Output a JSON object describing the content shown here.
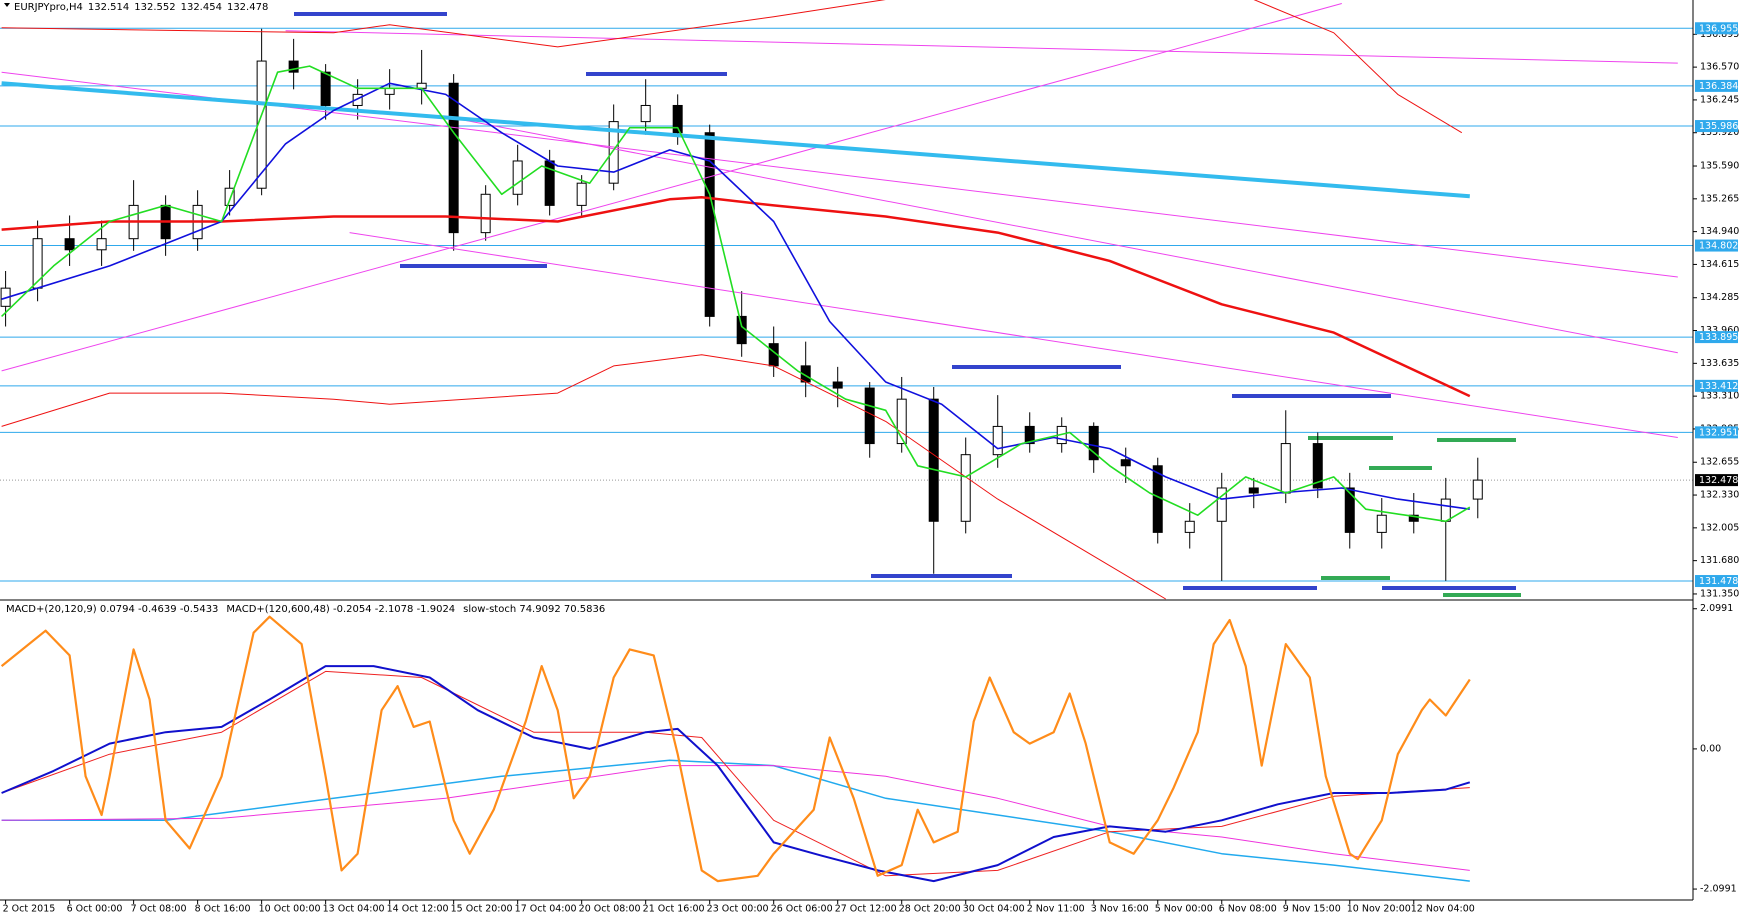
{
  "chart_data": [
    {
      "type": "candlestick",
      "title": "EURJPYpro,H4",
      "title_values": [
        132.514,
        132.552,
        132.454,
        132.478
      ],
      "x": [
        0,
        4,
        8,
        12,
        16,
        20,
        24,
        28,
        32,
        36,
        40,
        44,
        48,
        52,
        56,
        60,
        64,
        68,
        72,
        76,
        80,
        84,
        88,
        92,
        96,
        100,
        104,
        108,
        112,
        116,
        120,
        124,
        128,
        132,
        136,
        140,
        144,
        148,
        152,
        156,
        160,
        164,
        168,
        172,
        176,
        180,
        184
      ],
      "open": [
        134.2,
        134.38,
        134.87,
        134.76,
        134.87,
        135.2,
        134.87,
        135.2,
        135.37,
        136.63,
        136.52,
        136.19,
        136.3,
        136.36,
        136.41,
        134.93,
        135.31,
        135.64,
        135.2,
        135.42,
        136.03,
        136.19,
        135.92,
        134.1,
        133.83,
        133.61,
        133.45,
        133.39,
        132.84,
        133.28,
        132.07,
        132.73,
        133.01,
        132.84,
        133.01,
        132.68,
        132.62,
        131.96,
        132.07,
        132.4,
        132.35,
        132.84,
        132.4,
        131.96,
        132.13,
        132.07,
        132.29
      ],
      "high": [
        134.55,
        135.05,
        135.1,
        135.05,
        135.45,
        135.3,
        135.35,
        135.55,
        136.95,
        136.85,
        136.6,
        136.45,
        136.55,
        136.74,
        136.5,
        135.4,
        135.8,
        135.75,
        135.5,
        136.2,
        136.45,
        136.3,
        136.0,
        134.35,
        134.0,
        133.85,
        133.6,
        133.45,
        133.5,
        133.4,
        132.9,
        133.32,
        133.15,
        133.1,
        133.05,
        132.8,
        132.7,
        132.25,
        132.55,
        132.5,
        133.17,
        132.95,
        132.55,
        132.3,
        132.35,
        132.5,
        132.7
      ],
      "low": [
        134.0,
        134.25,
        134.6,
        134.6,
        134.75,
        134.7,
        134.75,
        135.1,
        135.3,
        136.35,
        136.05,
        136.05,
        136.15,
        136.2,
        134.75,
        134.85,
        135.2,
        135.1,
        135.1,
        135.35,
        135.9,
        135.8,
        134.0,
        133.7,
        133.5,
        133.3,
        133.2,
        132.7,
        132.75,
        131.55,
        131.95,
        132.6,
        132.75,
        132.75,
        132.55,
        132.45,
        131.85,
        131.8,
        131.48,
        132.2,
        132.25,
        132.3,
        131.8,
        131.8,
        131.95,
        131.48,
        132.1
      ],
      "close": [
        134.38,
        134.87,
        134.76,
        134.87,
        135.2,
        134.87,
        135.2,
        135.37,
        136.63,
        136.52,
        136.19,
        136.3,
        136.36,
        136.41,
        134.93,
        135.31,
        135.64,
        135.2,
        135.42,
        136.03,
        136.19,
        135.92,
        134.1,
        133.83,
        133.61,
        133.45,
        133.39,
        132.84,
        133.28,
        132.07,
        132.73,
        133.01,
        132.84,
        133.01,
        132.68,
        132.62,
        131.96,
        132.07,
        132.4,
        132.35,
        132.84,
        132.4,
        131.96,
        132.13,
        132.07,
        132.29,
        132.478
      ],
      "up_color": "#ffffff",
      "down_color": "#000000",
      "edge_color": "#000000",
      "xlim": [
        -0.7,
        210.9
      ],
      "ylim": [
        131.3,
        137.235
      ],
      "yticks": [
        136.895,
        {
          "value": 136.57,
          "label": "136.570"
        },
        136.245,
        {
          "value": 135.92,
          "label": "135.920"
        },
        {
          "value": 135.59,
          "label": "135.590"
        },
        135.265,
        {
          "value": 134.94,
          "label": "134.940"
        },
        134.615,
        134.285,
        {
          "value": 133.96,
          "label": "133.960"
        },
        133.635,
        {
          "value": 133.31,
          "label": "133.310"
        },
        132.985,
        132.655,
        {
          "value": 132.33,
          "label": "132.330"
        },
        132.005,
        {
          "value": 131.68,
          "label": "131.680"
        },
        {
          "value": 131.35,
          "label": "131.350"
        }
      ],
      "levels": [
        {
          "value": 136.955,
          "color": "#2fa9ec",
          "line": "solid"
        },
        {
          "value": 136.384,
          "color": "#2fa9ec",
          "line": "solid"
        },
        {
          "value": 135.986,
          "color": "#2fa9ec",
          "line": "solid"
        },
        {
          "value": 134.802,
          "color": "#2fa9ec",
          "line": "solid"
        },
        {
          "value": 133.895,
          "color": "#2fa9ec",
          "line": "solid"
        },
        {
          "value": 133.412,
          "color": "#2fa9ec",
          "line": "solid"
        },
        {
          "value": 132.951,
          "color": "#2fa9ec",
          "line": "solid"
        },
        {
          "value": 132.478,
          "color": "#000000",
          "line": "dotted"
        },
        {
          "value": 131.478,
          "color": "#2fa9ec",
          "line": "solid"
        }
      ],
      "overlays": [
        {
          "color": "#ee44ee",
          "width": 1,
          "x": [
            35,
            209
          ],
          "values": [
            136.93,
            136.61
          ]
        },
        {
          "color": "#ee44ee",
          "width": 1,
          "x": [
            -0.5,
            209
          ],
          "values": [
            136.52,
            134.49
          ]
        },
        {
          "color": "#ee44ee",
          "width": 1,
          "x": [
            55,
            209
          ],
          "values": [
            136.08,
            133.74
          ]
        },
        {
          "color": "#ee44ee",
          "width": 1,
          "x": [
            43,
            209
          ],
          "values": [
            134.93,
            132.9
          ]
        },
        {
          "color": "#ee44ee",
          "width": 1,
          "x": [
            -0.5,
            167
          ],
          "values": [
            133.56,
            137.2
          ]
        },
        {
          "color": "#33bbee",
          "width": 4,
          "x": [
            -0.5,
            183
          ],
          "values": [
            136.41,
            135.29
          ]
        },
        {
          "color": "#ee1111",
          "width": 1,
          "x": [
            -0.5,
            41,
            48,
            69,
            96,
            110
          ],
          "values": [
            136.96,
            136.91,
            136.99,
            136.77,
            137.07,
            137.24
          ]
        },
        {
          "color": "#ee1111",
          "width": 1,
          "x": [
            156,
            166,
            174,
            182
          ],
          "values": [
            137.24,
            136.91,
            136.3,
            135.92
          ]
        },
        {
          "color": "#ee1111",
          "width": 1,
          "x": [
            -0.5,
            13,
            27,
            41,
            48,
            69,
            76,
            87,
            96,
            110,
            124,
            145
          ],
          "values": [
            133.01,
            133.34,
            133.34,
            133.28,
            133.23,
            133.34,
            133.61,
            133.72,
            133.61,
            133.06,
            132.29,
            131.3
          ]
        },
        {
          "color": "#ee1111",
          "width": 2.5,
          "x": [
            -0.5,
            13,
            27,
            41,
            55,
            69,
            83,
            87,
            96,
            110,
            124,
            138,
            152,
            166,
            183
          ],
          "values": [
            134.96,
            135.04,
            135.04,
            135.09,
            135.09,
            135.04,
            135.26,
            135.28,
            135.2,
            135.09,
            134.93,
            134.65,
            134.22,
            133.94,
            133.31
          ]
        },
        {
          "color": "#1010dd",
          "width": 1.6,
          "x": [
            -0.5,
            13,
            27,
            35,
            41,
            48,
            55,
            62,
            69,
            76,
            83,
            88,
            96,
            103,
            110,
            117,
            124,
            131,
            138,
            145,
            152,
            159,
            167,
            174,
            183
          ],
          "values": [
            134.27,
            134.6,
            135.04,
            135.81,
            136.14,
            136.41,
            136.3,
            135.92,
            135.59,
            135.53,
            135.75,
            135.64,
            135.04,
            134.05,
            133.45,
            133.23,
            132.79,
            132.9,
            132.79,
            132.51,
            132.29,
            132.35,
            132.4,
            132.29,
            132.19
          ]
        },
        {
          "color": "#22dd22",
          "width": 1.6,
          "x": [
            -0.5,
            6,
            13,
            20,
            27,
            34,
            38,
            44,
            52,
            56,
            62,
            67,
            73,
            78,
            84,
            88,
            92,
            99,
            105,
            110,
            114,
            120,
            127,
            133,
            138,
            143,
            149,
            155,
            160,
            166,
            170,
            175,
            180,
            183
          ],
          "values": [
            134.1,
            134.6,
            135.04,
            135.2,
            135.04,
            136.52,
            136.58,
            136.36,
            136.36,
            135.92,
            135.31,
            135.59,
            135.42,
            135.97,
            135.97,
            135.31,
            134.0,
            133.56,
            133.28,
            133.17,
            132.62,
            132.51,
            132.84,
            132.95,
            132.62,
            132.35,
            132.13,
            132.51,
            132.35,
            132.51,
            132.19,
            132.13,
            132.07,
            132.21
          ]
        }
      ]
    },
    {
      "type": "line",
      "legend_texts": [
        "MACD+(20,120,9) 0.0794 -0.4639 -0.5433",
        "MACD+(120,600,48) -0.2054 -2.1078 -1.9024",
        "slow-stoch 74.9092 70.5836"
      ],
      "xlim": [
        -0.7,
        210.9
      ],
      "ylim": [
        -2.248,
        2.215
      ],
      "yticks": [
        2.0991,
        {
          "value": 0,
          "label": "0.00"
        },
        -2.0991
      ],
      "xticks": [
        {
          "value": 0,
          "label": "2 Oct 2015"
        },
        {
          "value": 8,
          "label": "6 Oct 00:00"
        },
        {
          "value": 16,
          "label": "7 Oct 08:00"
        },
        {
          "value": 24,
          "label": "8 Oct 16:00"
        },
        {
          "value": 32,
          "label": "10 Oct 00:00"
        },
        {
          "value": 40,
          "label": "13 Oct 04:00"
        },
        {
          "value": 48,
          "label": "14 Oct 12:00"
        },
        {
          "value": 56,
          "label": "15 Oct 20:00"
        },
        {
          "value": 64,
          "label": "17 Oct 04:00"
        },
        {
          "value": 72,
          "label": "20 Oct 08:00"
        },
        {
          "value": 80,
          "label": "21 Oct 16:00"
        },
        {
          "value": 88,
          "label": "23 Oct 00:00"
        },
        {
          "value": 96,
          "label": "26 Oct 06:00"
        },
        {
          "value": 104,
          "label": "27 Oct 12:00"
        },
        {
          "value": 112,
          "label": "28 Oct 20:00"
        },
        {
          "value": 120,
          "label": "30 Oct 04:00"
        },
        {
          "value": 128,
          "label": "2 Nov 11:00"
        },
        {
          "value": 136,
          "label": "3 Nov 16:00"
        },
        {
          "value": 144,
          "label": "5 Nov 00:00"
        },
        {
          "value": 152,
          "label": "6 Nov 08:00"
        },
        {
          "value": 160,
          "label": "9 Nov 15:00"
        },
        {
          "value": 168,
          "label": "10 Nov 20:00"
        },
        {
          "value": 176,
          "label": "12 Nov 04:00"
        }
      ],
      "series": [
        {
          "color": "#22aaee",
          "width": 1.5,
          "x": [
            -0.5,
            20,
            41,
            62,
            83,
            96,
            110,
            124,
            138,
            152,
            166,
            183
          ],
          "values": [
            -1.07,
            -1.07,
            -0.74,
            -0.41,
            -0.17,
            -0.25,
            -0.74,
            -0.99,
            -1.24,
            -1.57,
            -1.74,
            -1.98
          ]
        },
        {
          "color": "#ee33dd",
          "width": 1,
          "x": [
            -0.5,
            27,
            55,
            83,
            96,
            110,
            124,
            138,
            152,
            166,
            183
          ],
          "values": [
            -1.07,
            -1.04,
            -0.74,
            -0.25,
            -0.25,
            -0.41,
            -0.74,
            -1.16,
            -1.32,
            -1.57,
            -1.82
          ]
        },
        {
          "color": "#ee2222",
          "width": 1,
          "x": [
            -0.5,
            13,
            27,
            40,
            52,
            66,
            80,
            87,
            96,
            110,
            124,
            138,
            152,
            166,
            183
          ],
          "values": [
            -0.66,
            -0.08,
            0.25,
            1.16,
            1.07,
            0.25,
            0.25,
            0.17,
            -1.07,
            -1.9,
            -1.82,
            -1.24,
            -1.16,
            -0.71,
            -0.58
          ]
        },
        {
          "color": "#1010cc",
          "width": 2,
          "x": [
            -0.5,
            6,
            13,
            20,
            27,
            33,
            40,
            46,
            53,
            59,
            66,
            73,
            80,
            84,
            89,
            96,
            102,
            109,
            116,
            124,
            131,
            138,
            145,
            152,
            159,
            166,
            173,
            180,
            183
          ],
          "values": [
            -0.66,
            -0.33,
            0.08,
            0.25,
            0.33,
            0.74,
            1.24,
            1.24,
            1.07,
            0.58,
            0.17,
            0,
            0.25,
            0.3,
            -0.25,
            -1.4,
            -1.6,
            -1.82,
            -1.98,
            -1.74,
            -1.32,
            -1.16,
            -1.24,
            -1.07,
            -0.83,
            -0.66,
            -0.66,
            -0.61,
            -0.5
          ]
        },
        {
          "color": "#ff8c1a",
          "width": 2.2,
          "x": [
            -0.5,
            5,
            8,
            10,
            12,
            13,
            16,
            18,
            20,
            23,
            27,
            31,
            33,
            37,
            40,
            42,
            44,
            47,
            49,
            51,
            53,
            56,
            58,
            61,
            65,
            67,
            69,
            71,
            73,
            76,
            78,
            81,
            84,
            87,
            89,
            94,
            96,
            101,
            103,
            106,
            109,
            112,
            114,
            116,
            119,
            121,
            123,
            126,
            128,
            131,
            133,
            135,
            138,
            141,
            144,
            146,
            149,
            151,
            153,
            155,
            157,
            160,
            163,
            165,
            168,
            169,
            172,
            174,
            177,
            178,
            180,
            183
          ],
          "values": [
            1.24,
            1.77,
            1.4,
            -0.41,
            -0.99,
            -0.41,
            1.49,
            0.74,
            -1.07,
            -1.49,
            -0.41,
            1.74,
            1.98,
            1.57,
            -0.41,
            -1.82,
            -1.57,
            0.58,
            0.94,
            0.33,
            0.41,
            -1.07,
            -1.57,
            -0.91,
            0.41,
            1.24,
            0.58,
            -0.74,
            -0.41,
            1.07,
            1.49,
            1.4,
            -0.08,
            -1.82,
            -1.98,
            -1.9,
            -1.57,
            -0.91,
            0.17,
            -0.74,
            -1.9,
            -1.74,
            -0.91,
            -1.4,
            -1.24,
            0.41,
            1.07,
            0.25,
            0.08,
            0.25,
            0.83,
            0.08,
            -1.4,
            -1.57,
            -1.07,
            -0.58,
            0.25,
            1.57,
            1.93,
            1.24,
            -0.25,
            1.57,
            1.07,
            -0.41,
            -1.57,
            -1.65,
            -1.07,
            -0.08,
            0.58,
            0.74,
            0.5,
            1.04
          ]
        }
      ]
    }
  ]
}
